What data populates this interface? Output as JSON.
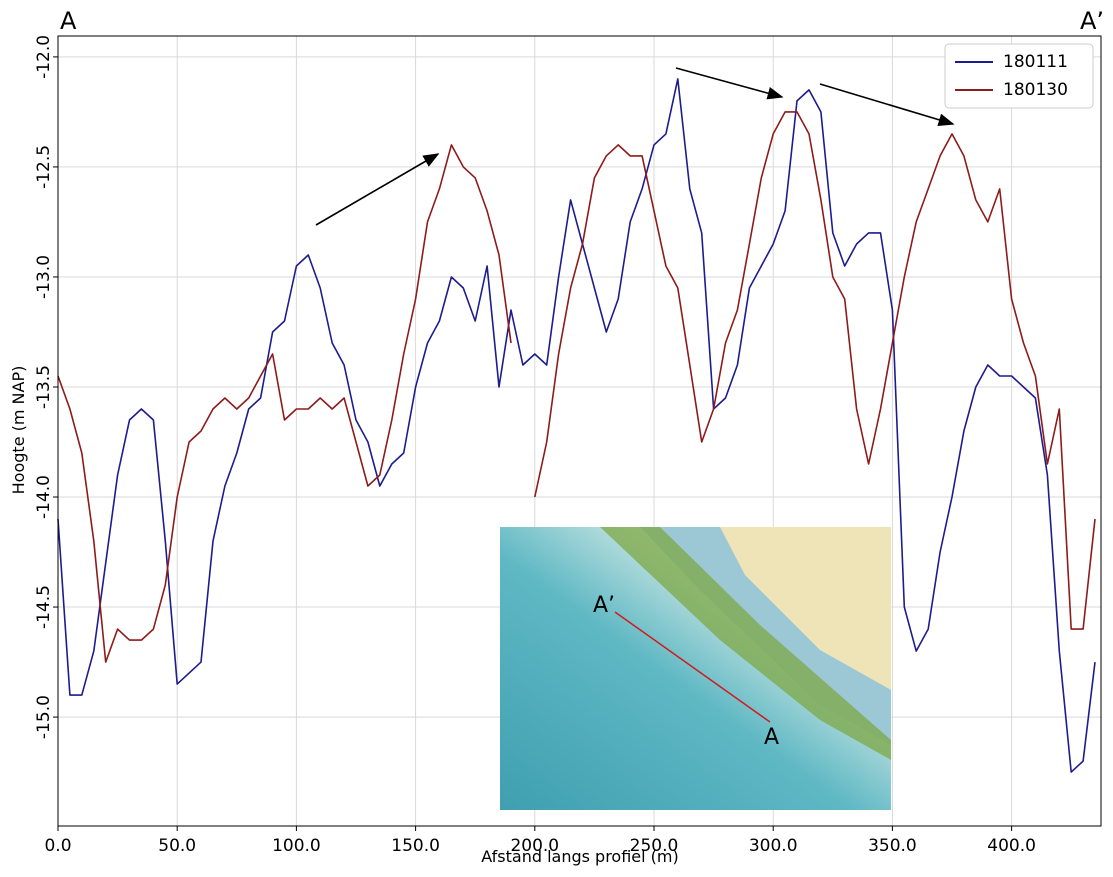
{
  "chart_data": {
    "type": "line",
    "x_label": "Afstand langs profiel (m)",
    "y_label": "Hoogte (m NAP)",
    "annotations": [
      "A",
      "A’"
    ],
    "inset_labels": [
      "A’",
      "A"
    ],
    "xlim": [
      0,
      437.5
    ],
    "ylim": [
      -15.495,
      -11.905
    ],
    "xticks": [
      {
        "value": 0,
        "label": "0.0"
      },
      {
        "value": 50,
        "label": "50.0"
      },
      {
        "value": 100,
        "label": "100.0"
      },
      {
        "value": 150,
        "label": "150.0"
      },
      {
        "value": 200,
        "label": "200.0"
      },
      {
        "value": 250,
        "label": "250.0"
      },
      {
        "value": 300,
        "label": "300.0"
      },
      {
        "value": 350,
        "label": "350.0"
      },
      {
        "value": 400,
        "label": "400.0"
      }
    ],
    "yticks": [
      {
        "value": -12,
        "label": "-12.0"
      },
      -12.5,
      {
        "value": -13,
        "label": "-13.0"
      },
      -13.5,
      {
        "value": -14,
        "label": "-14.0"
      },
      -14.5,
      {
        "value": -15,
        "label": "-15.0"
      }
    ],
    "grid": true,
    "legend": "upper right",
    "x": [
      0,
      5,
      10,
      15,
      20,
      25,
      30,
      35,
      40,
      45,
      50,
      55,
      60,
      65,
      70,
      75,
      80,
      85,
      90,
      95,
      100,
      105,
      110,
      115,
      120,
      125,
      130,
      135,
      140,
      145,
      150,
      155,
      160,
      165,
      170,
      175,
      180,
      185,
      190,
      195,
      200,
      205,
      210,
      215,
      220,
      225,
      230,
      235,
      240,
      245,
      250,
      255,
      260,
      265,
      270,
      275,
      280,
      285,
      290,
      295,
      300,
      305,
      310,
      315,
      320,
      325,
      330,
      335,
      340,
      345,
      350,
      355,
      360,
      365,
      370,
      375,
      380,
      385,
      390,
      395,
      400,
      405,
      410,
      415,
      420,
      425,
      430,
      435
    ],
    "series": [
      {
        "name": "180111",
        "color": "#1c1c8f",
        "values": [
          -14.1,
          -14.9,
          -14.9,
          -14.7,
          -14.3,
          -13.9,
          -13.65,
          -13.6,
          -13.65,
          -14.2,
          -14.85,
          -14.8,
          -14.75,
          -14.2,
          -13.95,
          -13.8,
          -13.6,
          -13.55,
          -13.25,
          -13.2,
          -12.95,
          -12.9,
          -13.05,
          -13.3,
          -13.4,
          -13.65,
          -13.75,
          -13.95,
          -13.85,
          -13.8,
          -13.5,
          -13.3,
          -13.2,
          -13.0,
          -13.05,
          -13.2,
          -12.95,
          -13.5,
          -13.15,
          -13.4,
          -13.35,
          -13.4,
          -13.0,
          -12.65,
          -12.85,
          -13.05,
          -13.25,
          -13.1,
          -12.75,
          -12.6,
          -12.4,
          -12.35,
          -12.1,
          -12.6,
          -12.8,
          -13.6,
          -13.55,
          -13.4,
          -13.05,
          -12.95,
          -12.85,
          -12.7,
          -12.2,
          -12.15,
          -12.25,
          -12.8,
          -12.95,
          -12.85,
          -12.8,
          -12.8,
          -13.15,
          -14.5,
          -14.7,
          -14.6,
          -14.25,
          -14.0,
          -13.7,
          -13.5,
          -13.4,
          -13.45,
          -13.45,
          -13.5,
          -13.55,
          -13.9,
          -14.7,
          -15.25,
          -15.2,
          -14.75
        ]
      },
      {
        "name": "180130",
        "color": "#8e1b1b",
        "values": [
          -13.45,
          -13.6,
          -13.8,
          -14.2,
          -14.75,
          -14.6,
          -14.65,
          -14.65,
          -14.6,
          -14.4,
          -14.0,
          -13.75,
          -13.7,
          -13.6,
          -13.55,
          -13.6,
          -13.55,
          -13.45,
          -13.35,
          -13.65,
          -13.6,
          -13.6,
          -13.55,
          -13.6,
          -13.55,
          -13.75,
          -13.95,
          -13.9,
          -13.65,
          -13.35,
          -13.1,
          -12.75,
          -12.6,
          -12.4,
          -12.5,
          -12.55,
          -12.7,
          -12.9,
          -13.3,
          null,
          -14.0,
          -13.75,
          -13.35,
          -13.05,
          -12.85,
          -12.55,
          -12.45,
          -12.4,
          -12.45,
          -12.45,
          -12.7,
          -12.95,
          -13.05,
          -13.4,
          -13.75,
          -13.6,
          -13.3,
          -13.15,
          -12.85,
          -12.55,
          -12.35,
          -12.25,
          -12.25,
          -12.35,
          -12.65,
          -13.0,
          -13.1,
          -13.6,
          -13.85,
          -13.6,
          -13.3,
          -13.0,
          -12.75,
          -12.6,
          -12.45,
          -12.35,
          -12.45,
          -12.65,
          -12.75,
          -12.6,
          -13.1,
          -13.3,
          -13.45,
          -13.85,
          -13.6,
          -14.6,
          -14.6,
          -14.1
        ]
      }
    ]
  }
}
